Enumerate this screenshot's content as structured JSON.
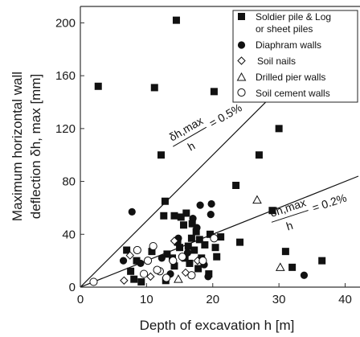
{
  "chart_data": {
    "type": "scatter",
    "xlabel": "Depth of excavation h [m]",
    "ylabel_line1": "Maximum horizontal wall",
    "ylabel_line2": "deflection δh, max [mm]",
    "xlim": [
      0,
      42
    ],
    "ylim": [
      0,
      210
    ],
    "xticks": [
      0,
      10,
      20,
      30,
      40
    ],
    "yticks": [
      0,
      40,
      80,
      120,
      160,
      200
    ],
    "grid": false,
    "legend_position": "top-right",
    "colors": {
      "ink": "#111111",
      "frame": "#333333"
    },
    "series": [
      {
        "name": "Soldier pile & Log",
        "name_line2": "or sheet piles",
        "marker": "square",
        "points": [
          [
            2.7,
            152
          ],
          [
            11.2,
            151
          ],
          [
            14.5,
            202
          ],
          [
            20.2,
            148
          ],
          [
            30,
            120
          ],
          [
            12.2,
            100
          ],
          [
            27,
            100
          ],
          [
            23.5,
            77
          ],
          [
            12.8,
            65
          ],
          [
            29,
            58
          ],
          [
            14.2,
            54
          ],
          [
            16,
            56
          ],
          [
            15.2,
            53
          ],
          [
            12.6,
            54
          ],
          [
            24.1,
            34
          ],
          [
            31,
            27
          ],
          [
            32,
            15
          ],
          [
            36.5,
            20
          ],
          [
            7,
            28
          ],
          [
            8.5,
            20
          ],
          [
            10.8,
            27
          ],
          [
            13.1,
            25
          ],
          [
            13.9,
            22
          ],
          [
            14.2,
            16
          ],
          [
            15,
            30
          ],
          [
            15.8,
            22
          ],
          [
            16.3,
            31
          ],
          [
            16.8,
            37
          ],
          [
            17.2,
            28
          ],
          [
            17.5,
            42
          ],
          [
            18,
            36
          ],
          [
            18.3,
            22
          ],
          [
            18.8,
            32
          ],
          [
            19.4,
            10
          ],
          [
            19.6,
            40
          ],
          [
            20.4,
            30
          ],
          [
            20.6,
            23
          ],
          [
            21.2,
            38
          ],
          [
            16.5,
            18
          ],
          [
            17.8,
            14
          ],
          [
            7.6,
            12
          ],
          [
            8.1,
            6
          ],
          [
            9.2,
            4
          ],
          [
            12.9,
            5
          ],
          [
            14.7,
            34
          ],
          [
            16.9,
            48
          ],
          [
            15.6,
            47
          ]
        ]
      },
      {
        "name": "Diaphram walls",
        "marker": "filled-circle",
        "points": [
          [
            7.8,
            57
          ],
          [
            18.1,
            62
          ],
          [
            19.8,
            63
          ],
          [
            19.7,
            55
          ],
          [
            17,
            52
          ],
          [
            17.6,
            45
          ],
          [
            6.5,
            20
          ],
          [
            9.1,
            18
          ],
          [
            12.3,
            22
          ],
          [
            13.6,
            10
          ],
          [
            14.8,
            37
          ],
          [
            18.7,
            17
          ],
          [
            19.3,
            8
          ],
          [
            33.8,
            9
          ],
          [
            16.2,
            26
          ]
        ]
      },
      {
        "name": "Soil nails",
        "marker": "diamond",
        "points": [
          [
            7.5,
            24
          ],
          [
            6.6,
            5
          ],
          [
            14.2,
            35
          ],
          [
            15.9,
            11
          ],
          [
            17.7,
            20
          ],
          [
            10.6,
            8
          ]
        ]
      },
      {
        "name": "Drilled pier walls",
        "marker": "triangle",
        "points": [
          [
            26.7,
            66
          ],
          [
            30.2,
            15
          ],
          [
            14.8,
            6
          ]
        ]
      },
      {
        "name": "Soil cement walls",
        "marker": "open-circle",
        "points": [
          [
            2,
            4
          ],
          [
            8.6,
            28
          ],
          [
            11,
            31
          ],
          [
            10.2,
            20
          ],
          [
            12,
            12
          ],
          [
            13,
            7
          ],
          [
            14,
            20
          ],
          [
            9.6,
            10
          ],
          [
            16.8,
            9
          ],
          [
            20.2,
            37
          ],
          [
            15.4,
            23
          ],
          [
            18.5,
            20
          ],
          [
            11.6,
            13
          ]
        ]
      }
    ],
    "reference_lines": [
      {
        "label_ratio": "δh,max",
        "label_denom": "h",
        "label_value": "= 0.5%",
        "ratio": 0.005,
        "x_range": [
          0,
          36
        ]
      },
      {
        "label_ratio": "δh,max",
        "label_denom": "h",
        "label_value": "= 0.2%",
        "ratio": 0.002,
        "x_range": [
          0,
          42
        ]
      }
    ]
  }
}
